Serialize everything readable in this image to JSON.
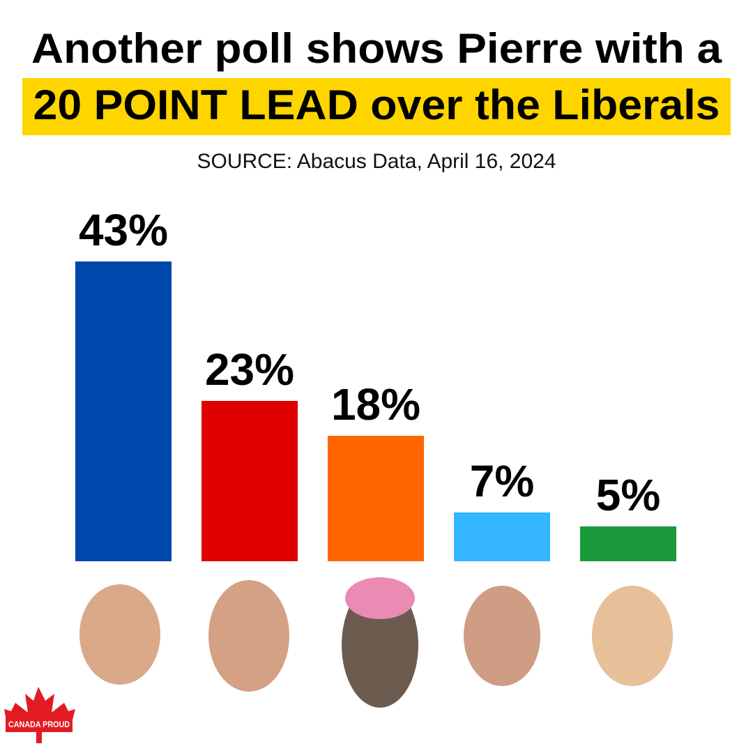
{
  "chart_data": {
    "type": "bar",
    "title": "Another poll shows Pierre with a",
    "title_highlight": "20 POINT LEAD over the Liberals",
    "subtitle": "SOURCE: Abacus Data, April 16, 2024",
    "categories": [
      null,
      null,
      null,
      null,
      null
    ],
    "values": [
      43,
      23,
      18,
      7,
      5
    ],
    "value_labels": [
      "43%",
      "23%",
      "18%",
      "7%",
      "5%"
    ],
    "colors": [
      "#0047ab",
      "#e00000",
      "#ff6600",
      "#33b5ff",
      "#1a9a3a"
    ]
  },
  "logo": {
    "text": "CANADA PROUD"
  }
}
